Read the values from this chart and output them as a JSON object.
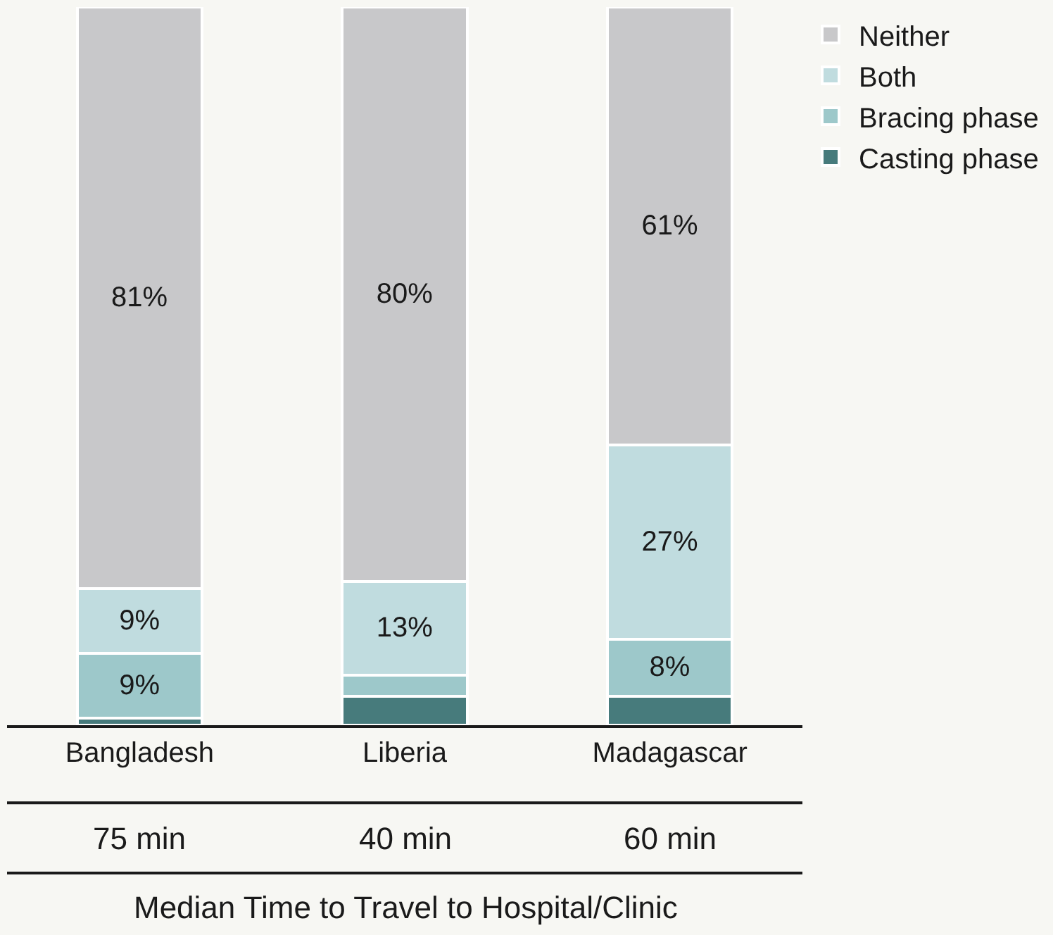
{
  "chart_data": {
    "type": "bar",
    "stacked": true,
    "categories": [
      "Bangladesh",
      "Liberia",
      "Madagascar"
    ],
    "series": [
      {
        "name": "Casting phase",
        "color": "#477b7c",
        "values": [
          1,
          4,
          4
        ],
        "value_labels": [
          null,
          null,
          null
        ]
      },
      {
        "name": "Bracing phase",
        "color": "#9dc8ca",
        "values": [
          9,
          3,
          8
        ],
        "value_labels": [
          "9%",
          null,
          "8%"
        ]
      },
      {
        "name": "Both",
        "color": "#c0dcdf",
        "values": [
          9,
          13,
          27
        ],
        "value_labels": [
          "9%",
          "13%",
          "27%"
        ]
      },
      {
        "name": "Neither",
        "color": "#c8c8ca",
        "values": [
          81,
          80,
          61
        ],
        "value_labels": [
          "81%",
          "80%",
          "61%"
        ]
      }
    ],
    "ylim": [
      0,
      100
    ],
    "tick_labels": "x",
    "grid": false,
    "legend": "top right",
    "annotations": [
      "75 min",
      "40 min",
      "60 min",
      "Median Time to Travel to Hospital/Clinic"
    ]
  }
}
